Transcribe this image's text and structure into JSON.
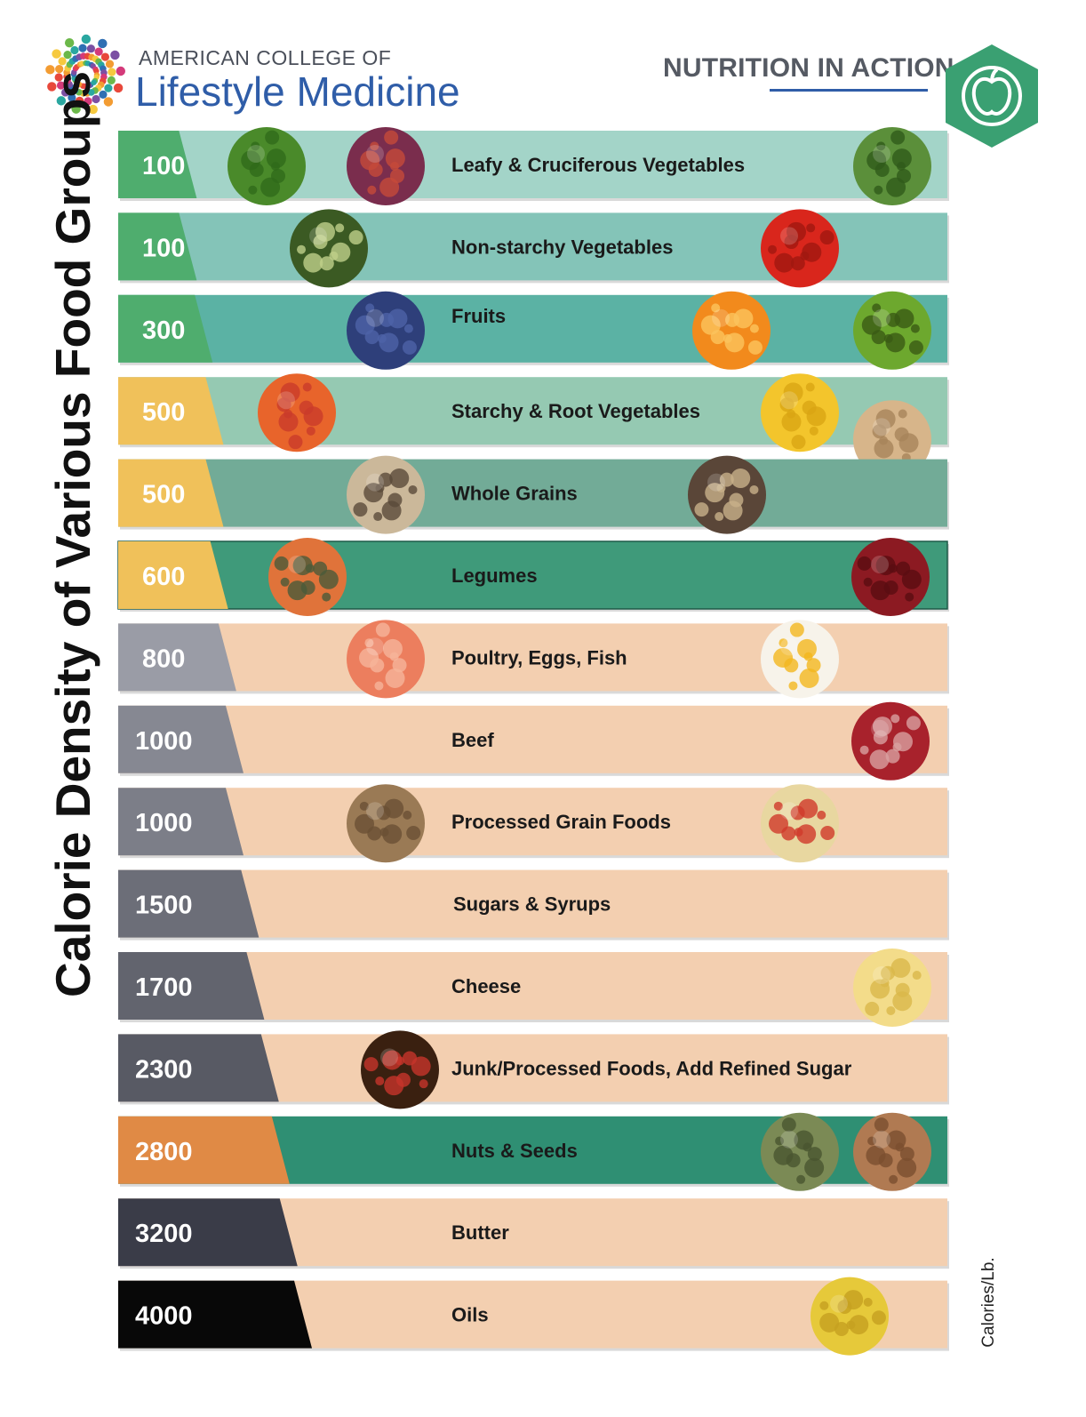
{
  "header": {
    "org_line1": "AMERICAN COLLEGE OF",
    "org_line2": "Lifestyle Medicine",
    "badge": "NUTRITION IN ACTION",
    "badge_icon": "apple-icon"
  },
  "chart_data": {
    "type": "bar",
    "title": "Calorie Density of Various Food Groups",
    "units": "Calories/Lb.",
    "categories": [
      "Leafy & Cruciferous Vegetables",
      "Non-starchy Vegetables",
      "Fruits",
      "Starchy & Root Vegetables",
      "Whole Grains",
      "Legumes",
      "Poultry, Eggs, Fish",
      "Beef",
      "Processed Grain Foods",
      "Sugars & Syrups",
      "Cheese",
      "Junk/Processed Foods, Add Refined Sugar",
      "Nuts & Seeds",
      "Butter",
      "Oils"
    ],
    "values": [
      100,
      100,
      300,
      500,
      500,
      600,
      800,
      1000,
      1000,
      1500,
      1700,
      2300,
      2800,
      3200,
      4000
    ],
    "value_colors": [
      "#4fad6e",
      "#4fad6e",
      "#4fad6e",
      "#f0c15a",
      "#f0c15a",
      "#f0c15a",
      "#9a9ca6",
      "#868892",
      "#7c7e88",
      "#6c6e78",
      "#62646e",
      "#585a64",
      "#e08a45",
      "#3a3c48",
      "#080808"
    ],
    "band_colors": [
      "#a3d4c8",
      "#84c4b8",
      "#5bb2a4",
      "#95c9b2",
      "#72ab97",
      "#3f9a7a",
      "#f3cfb0",
      "#f3cfb0",
      "#f3cfb0",
      "#f3cfb0",
      "#f3cfb0",
      "#f3cfb0",
      "#2f8f73",
      "#f3cfb0",
      "#f3cfb0"
    ],
    "food_icons": [
      [
        "broccoli-icon",
        "salad-icon",
        "kale-icon"
      ],
      [
        "cucumber-icon",
        "tomato-icon"
      ],
      [
        "blueberries-icon",
        "orange-icon",
        "kiwi-icon"
      ],
      [
        "carrots-icon",
        "corn-icon",
        "potatoes-icon"
      ],
      [
        "wild-rice-icon",
        "quinoa-icon"
      ],
      [
        "lentils-icon",
        "kidney-beans-icon"
      ],
      [
        "salmon-icon",
        "eggs-icon"
      ],
      [
        "steak-icon"
      ],
      [
        "shredded-wheat-icon",
        "pasta-icon"
      ],
      [],
      [
        "cheese-icon"
      ],
      [
        "soda-icon"
      ],
      [
        "pumpkin-seeds-icon",
        "almonds-icon"
      ],
      [],
      [
        "olive-oil-icon"
      ]
    ]
  }
}
